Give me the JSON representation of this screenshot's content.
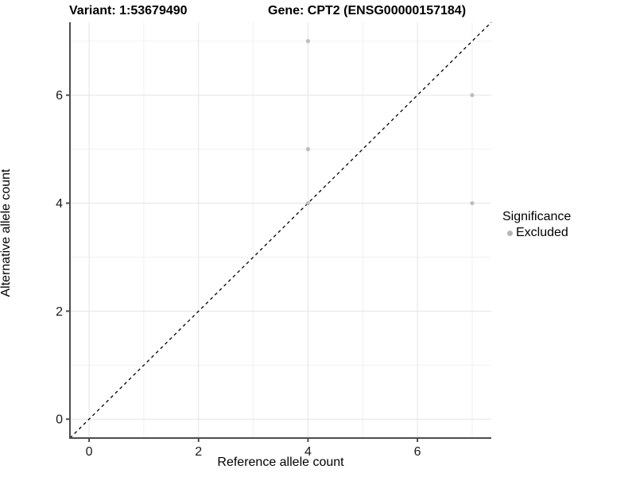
{
  "chart": {
    "title_left": "Variant: 1:53679490",
    "title_right": "Gene: CPT2 (ENSG00000157184)",
    "xlabel": "Reference allele count",
    "ylabel": "Alternative allele count",
    "legend": {
      "title": "Significance",
      "items": [
        {
          "label": "Excluded",
          "color": "#b5b5b5"
        }
      ]
    }
  },
  "chart_data": {
    "type": "scatter",
    "title": "Variant: 1:53679490   Gene: CPT2 (ENSG00000157184)",
    "xlabel": "Reference allele count",
    "ylabel": "Alternative allele count",
    "xlim": [
      -0.35,
      7.35
    ],
    "ylim": [
      -0.35,
      7.35
    ],
    "x_major_ticks": [
      0,
      2,
      4,
      6
    ],
    "y_major_ticks": [
      0,
      2,
      4,
      6
    ],
    "x_minor_ticks": [
      1,
      3,
      5,
      7
    ],
    "y_minor_ticks": [
      1,
      3,
      5,
      7
    ],
    "grid": true,
    "legend_position": "right",
    "series": [
      {
        "name": "Excluded",
        "color": "#bdbdbd",
        "points": [
          [
            4,
            7
          ],
          [
            4,
            5
          ],
          [
            4,
            4
          ],
          [
            7,
            6
          ],
          [
            7,
            4
          ]
        ]
      }
    ],
    "abline": {
      "slope": 1,
      "intercept": 0,
      "style": "dashed",
      "color": "#000000"
    },
    "colors": {
      "grid_major": "#e4e4e4",
      "grid_minor": "#f1f1f1",
      "axis_line": "#4d4d4d",
      "tick_label": "#1a1a1a",
      "point": "#bdbdbd"
    }
  }
}
